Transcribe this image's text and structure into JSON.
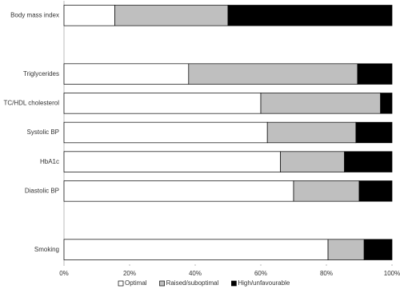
{
  "chart_data": {
    "type": "stacked-barh",
    "categories": [
      "Body mass index",
      null,
      "Triglycerides",
      "TC/HDL cholesterol",
      "Systolic BP",
      "HbA1c",
      "Diastolic BP",
      null,
      "Smoking"
    ],
    "series": [
      {
        "name": "Optimal",
        "color": "#ffffff",
        "values": [
          15.5,
          null,
          38,
          60,
          62,
          66,
          70,
          null,
          80.5
        ]
      },
      {
        "name": "Raised/suboptimal",
        "color": "#bfbfbf",
        "values": [
          34.5,
          null,
          51.5,
          36.5,
          27,
          19.5,
          20,
          null,
          11
        ]
      },
      {
        "name": "High/unfavourable",
        "color": "#000000",
        "values": [
          50,
          null,
          10.5,
          3.5,
          11,
          14.5,
          10,
          null,
          8.5
        ]
      }
    ],
    "xlim": [
      0,
      100
    ],
    "xticks": [
      {
        "value": 0,
        "label": "0%"
      },
      {
        "value": 20,
        "label": "20%"
      },
      {
        "value": 40,
        "label": "40%"
      },
      {
        "value": 60,
        "label": "60%"
      },
      {
        "value": 80,
        "label": "80%"
      },
      {
        "value": 100,
        "label": "100%"
      }
    ],
    "legend": "bottom"
  }
}
